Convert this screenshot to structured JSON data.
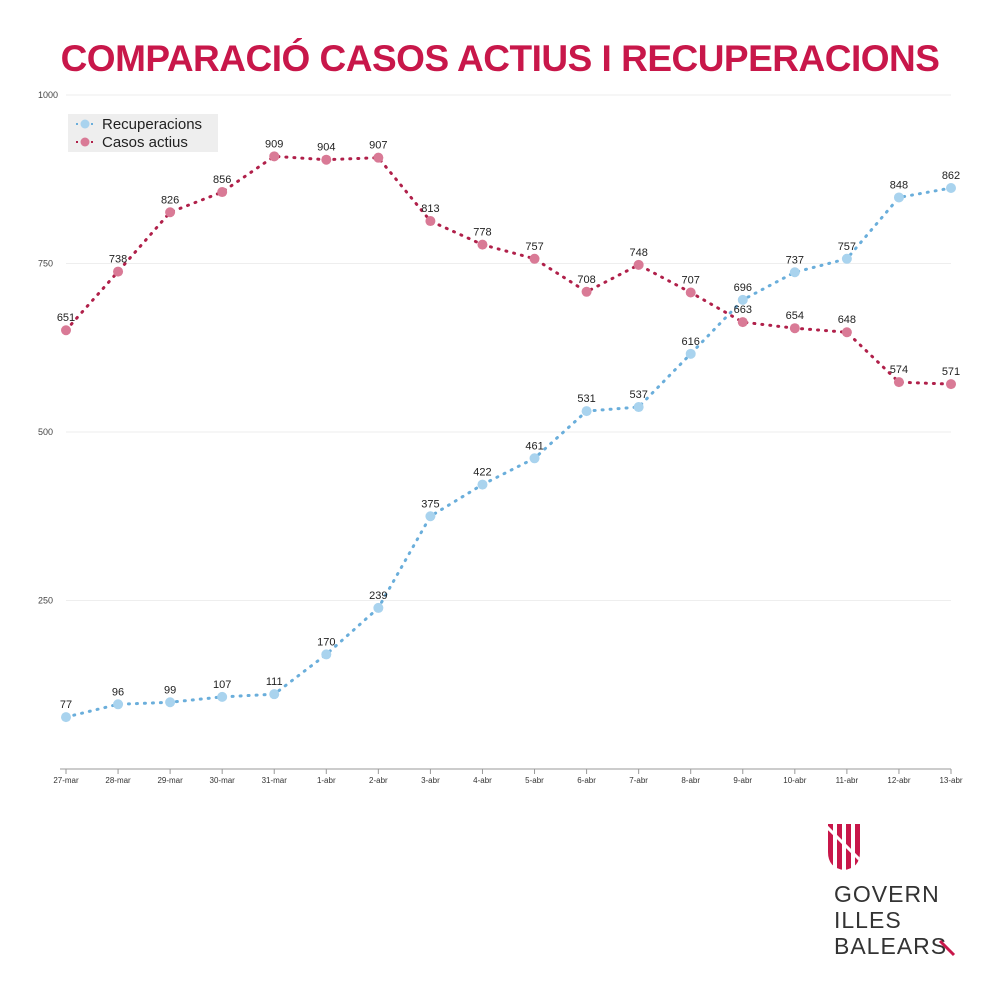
{
  "chart_data": {
    "type": "line",
    "title": "COMPARACIÓ CASOS ACTIUS I RECUPERACIONS",
    "categories": [
      "27-mar",
      "28-mar",
      "29-mar",
      "30-mar",
      "31-mar",
      "1-abr",
      "2-abr",
      "3-abr",
      "4-abr",
      "5-abr",
      "6-abr",
      "7-abr",
      "8-abr",
      "9-abr",
      "10-abr",
      "11-abr",
      "12-abr",
      "13-abr"
    ],
    "ylim": [
      0,
      1000
    ],
    "yticks": [
      250,
      500,
      750,
      1000
    ],
    "grid": true,
    "legend_placement": "top-left",
    "series": [
      {
        "name": "Recuperacions",
        "color": "#a9d3ee",
        "line_color": "#6aaedb",
        "values": [
          77,
          96,
          99,
          107,
          111,
          170,
          239,
          375,
          422,
          461,
          531,
          537,
          616,
          696,
          737,
          757,
          848,
          862
        ]
      },
      {
        "name": "Casos actius",
        "color": "#d97a96",
        "line_color": "#b0204a",
        "values": [
          651,
          738,
          826,
          856,
          909,
          904,
          907,
          813,
          778,
          757,
          708,
          748,
          707,
          663,
          654,
          648,
          574,
          571
        ]
      }
    ]
  },
  "logo": {
    "lines": [
      "GOVERN",
      "ILLES",
      "BALEARS"
    ],
    "color": "#c8174a"
  }
}
